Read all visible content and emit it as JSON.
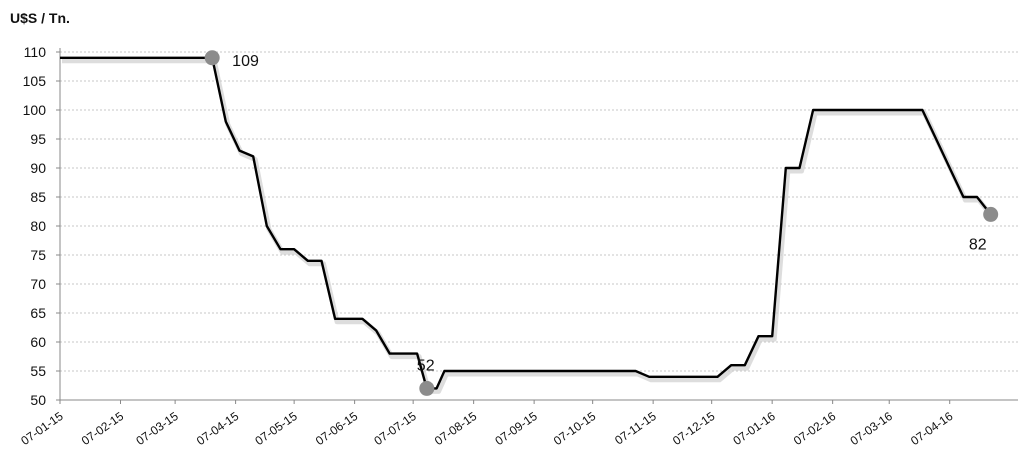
{
  "chart_data": {
    "type": "line",
    "ylabel": "U$S / Tn.",
    "ylim": [
      50,
      110
    ],
    "yticks": [
      50,
      55,
      60,
      65,
      70,
      75,
      80,
      85,
      90,
      95,
      100,
      105,
      110
    ],
    "xticks": [
      "07-01-15",
      "07-02-15",
      "07-03-15",
      "07-04-15",
      "07-05-15",
      "07-06-15",
      "07-07-15",
      "07-08-15",
      "07-09-15",
      "07-10-15",
      "07-11-15",
      "07-12-15",
      "07-01-16",
      "07-02-16",
      "07-03-16",
      "07-04-16"
    ],
    "grid": true,
    "series": [
      {
        "color": "#000000",
        "x": [
          "2015-01-01",
          "2015-03-20",
          "2015-03-27",
          "2015-04-03",
          "2015-04-10",
          "2015-04-17",
          "2015-04-24",
          "2015-05-01",
          "2015-05-08",
          "2015-05-15",
          "2015-05-22",
          "2015-06-05",
          "2015-06-12",
          "2015-06-19",
          "2015-07-03",
          "2015-07-08",
          "2015-07-13",
          "2015-07-17",
          "2015-07-24",
          "2015-10-23",
          "2015-10-30",
          "2015-12-04",
          "2015-12-11",
          "2015-12-18",
          "2015-12-25",
          "2016-01-01",
          "2016-01-08",
          "2016-01-15",
          "2016-01-22",
          "2016-03-18",
          "2016-03-25",
          "2016-04-01",
          "2016-04-08",
          "2016-04-15",
          "2016-04-22"
        ],
        "y": [
          109,
          109,
          98,
          93,
          92,
          80,
          76,
          76,
          74,
          74,
          64,
          64,
          62,
          58,
          58,
          52,
          52,
          55,
          55,
          55,
          54,
          54,
          56,
          56,
          61,
          61,
          90,
          90,
          100,
          100,
          95,
          90,
          85,
          85,
          82
        ]
      }
    ],
    "markers": [
      {
        "x": "2015-03-20",
        "y": 109,
        "label": "109",
        "color": "#8c8c8c"
      },
      {
        "x": "2015-07-08",
        "y": 52,
        "label": "52",
        "color": "#8c8c8c"
      },
      {
        "x": "2016-04-22",
        "y": 82,
        "label": "82",
        "color": "#8c8c8c"
      }
    ]
  }
}
